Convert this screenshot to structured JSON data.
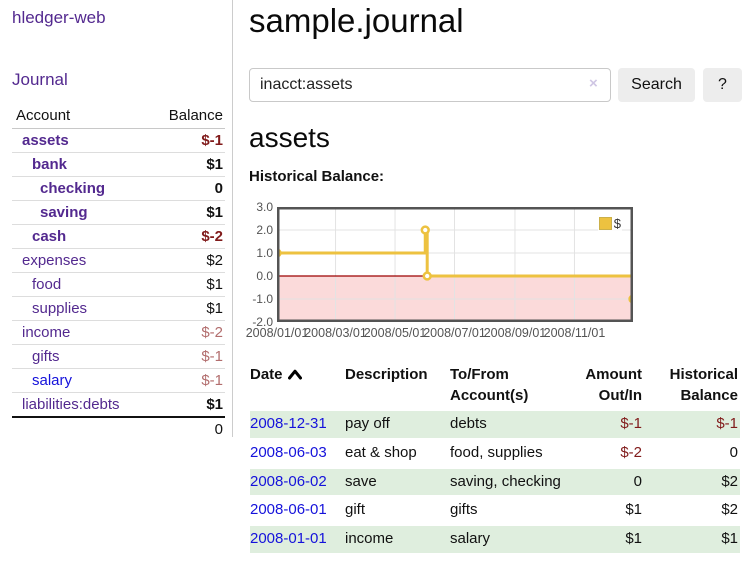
{
  "app": {
    "brand": "hledger-web",
    "nav_journal": "Journal"
  },
  "sidebar": {
    "header": {
      "account": "Account",
      "balance": "Balance"
    },
    "rows": [
      {
        "label": "assets",
        "balance": "$-1",
        "indent": 1,
        "bold": true,
        "link": "purple",
        "amt": "neg-bold"
      },
      {
        "label": "bank",
        "balance": "$1",
        "indent": 2,
        "bold": true,
        "link": "purple",
        "amt": "bold"
      },
      {
        "label": "checking",
        "balance": "0",
        "indent": 3,
        "bold": true,
        "link": "purple",
        "amt": "bold"
      },
      {
        "label": "saving",
        "balance": "$1",
        "indent": 3,
        "bold": true,
        "link": "purple",
        "amt": "bold"
      },
      {
        "label": "cash",
        "balance": "$-2",
        "indent": 2,
        "bold": true,
        "link": "purple",
        "amt": "neg-bold"
      },
      {
        "label": "expenses",
        "balance": "$2",
        "indent": 1,
        "bold": false,
        "link": "purple",
        "amt": "plain"
      },
      {
        "label": "food",
        "balance": "$1",
        "indent": 2,
        "bold": false,
        "link": "purple",
        "amt": "plain"
      },
      {
        "label": "supplies",
        "balance": "$1",
        "indent": 2,
        "bold": false,
        "link": "purple",
        "amt": "plain"
      },
      {
        "label": "income",
        "balance": "$-2",
        "indent": 1,
        "bold": false,
        "link": "purple",
        "amt": "neg-muted"
      },
      {
        "label": "gifts",
        "balance": "$-1",
        "indent": 2,
        "bold": false,
        "link": "purple",
        "amt": "neg-muted"
      },
      {
        "label": "salary",
        "balance": "$-1",
        "indent": 2,
        "bold": false,
        "link": "blue",
        "amt": "neg-muted"
      },
      {
        "label": "liabilities:debts",
        "balance": "$1",
        "indent": 1,
        "bold": false,
        "link": "purple",
        "amt": "bold"
      }
    ],
    "total": "0"
  },
  "main": {
    "title": "sample.journal",
    "search": {
      "value": "inacct:assets",
      "clear_icon": "×",
      "button_label": "Search",
      "help_label": "?"
    },
    "section_title": "assets",
    "chart_label": "Historical Balance:"
  },
  "chart_data": {
    "type": "line",
    "step": true,
    "title": "Historical Balance:",
    "series": [
      {
        "name": "$",
        "color": "#edc240",
        "points": [
          [
            "2008-01-01",
            1
          ],
          [
            "2008-06-01",
            2
          ],
          [
            "2008-06-03",
            0
          ],
          [
            "2008-12-31",
            -1
          ]
        ]
      }
    ],
    "xlim": [
      "2008-01-01",
      "2008-12-31"
    ],
    "ylim": [
      -2,
      3
    ],
    "y_ticks": [
      "3.0",
      "2.0",
      "1.0",
      "0.0",
      "-1.0",
      "-2.0"
    ],
    "x_ticks": [
      "2008/01/01",
      "2008/03/01",
      "2008/05/01",
      "2008/07/01",
      "2008/09/01",
      "2008/11/01"
    ],
    "grid": true,
    "border_color": "#545454",
    "grid_color": "#e3e3e3",
    "zero_line_color": "#9c0000",
    "negative_region_color": "#fbdada",
    "legend": {
      "label": "$",
      "position": "top-right"
    }
  },
  "register": {
    "headers": {
      "date": "Date",
      "description": "Description",
      "accounts": "To/From Account(s)",
      "amount": "Amount Out/In",
      "balance": "Historical Balance"
    },
    "sort_icon": "chevron-up",
    "rows": [
      {
        "date": "2008-12-31",
        "description": "pay off",
        "accounts": "debts",
        "amount": "$-1",
        "amount_neg": true,
        "balance": "$-1",
        "balance_neg": true,
        "stripe": true
      },
      {
        "date": "2008-06-03",
        "description": "eat & shop",
        "accounts": "food, supplies",
        "amount": "$-2",
        "amount_neg": true,
        "balance": "0",
        "balance_neg": false,
        "stripe": false
      },
      {
        "date": "2008-06-02",
        "description": "save",
        "accounts": "saving, checking",
        "amount": "0",
        "amount_neg": false,
        "balance": "$2",
        "balance_neg": false,
        "stripe": true
      },
      {
        "date": "2008-06-01",
        "description": "gift",
        "accounts": "gifts",
        "amount": "$1",
        "amount_neg": false,
        "balance": "$2",
        "balance_neg": false,
        "stripe": false
      },
      {
        "date": "2008-01-01",
        "description": "income",
        "accounts": "salary",
        "amount": "$1",
        "amount_neg": false,
        "balance": "$1",
        "balance_neg": false,
        "stripe": true
      }
    ]
  }
}
